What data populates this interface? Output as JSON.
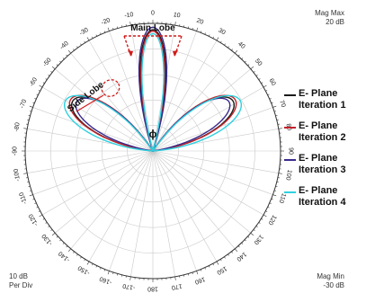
{
  "corner_labels": {
    "top_right_line1": "Mag Max",
    "top_right_line2": "20 dB",
    "bottom_left_line1": "10 dB",
    "bottom_left_line2": "Per Div",
    "bottom_right_line1": "Mag Min",
    "bottom_right_line2": "-30 dB"
  },
  "annotations": {
    "main_lobe": "Main Lobe",
    "side_lobe": "Side Lobe",
    "phi": "ϕ"
  },
  "chart_data": {
    "type": "polar",
    "r_range_db": [
      -30,
      20
    ],
    "r_per_div_db": 10,
    "angle_ticks": [
      "0",
      "10",
      "20",
      "30",
      "40",
      "50",
      "60",
      "70",
      "80",
      "90",
      "100",
      "110",
      "120",
      "130",
      "140",
      "150",
      "160",
      "170",
      "180",
      "-170",
      "-160",
      "-150",
      "-140",
      "-130",
      "-120",
      "-110",
      "-100",
      "-90",
      "-80",
      "-70",
      "-60",
      "-50",
      "-40",
      "-30",
      "-20",
      "-10"
    ],
    "grid": true,
    "legend_position": "right",
    "series": [
      {
        "name": "E- Plane Iteration 1",
        "color": "#1a1a1a",
        "lobes": [
          {
            "angle_deg": 0,
            "gain_db": 17.5,
            "half_width_deg": 17
          },
          {
            "angle_deg": 58,
            "gain_db": 7,
            "half_width_deg": 25
          },
          {
            "angle_deg": -58,
            "gain_db": 7,
            "half_width_deg": 25
          }
        ]
      },
      {
        "name": "E- Plane Iteration 2",
        "color": "#c0222a",
        "lobes": [
          {
            "angle_deg": 0,
            "gain_db": 17,
            "half_width_deg": 16
          },
          {
            "angle_deg": 58,
            "gain_db": 8,
            "half_width_deg": 25
          },
          {
            "angle_deg": -58,
            "gain_db": 8,
            "half_width_deg": 25
          }
        ]
      },
      {
        "name": "E- Plane Iteration 3",
        "color": "#3b2a8c",
        "lobes": [
          {
            "angle_deg": 0,
            "gain_db": 18.5,
            "half_width_deg": 18
          },
          {
            "angle_deg": 57,
            "gain_db": 5.5,
            "half_width_deg": 24
          },
          {
            "angle_deg": -57,
            "gain_db": 5.5,
            "half_width_deg": 24
          }
        ]
      },
      {
        "name": "E- Plane Iteration 4",
        "color": "#2fd0e0",
        "lobes": [
          {
            "angle_deg": 0,
            "gain_db": 16,
            "half_width_deg": 15
          },
          {
            "angle_deg": 60,
            "gain_db": 9.5,
            "half_width_deg": 26
          },
          {
            "angle_deg": -60,
            "gain_db": 9.5,
            "half_width_deg": 26
          }
        ]
      }
    ]
  }
}
